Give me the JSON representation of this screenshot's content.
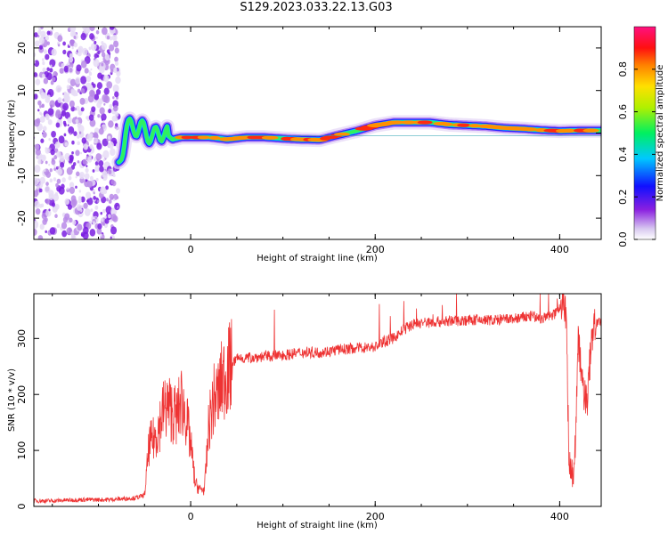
{
  "title": "S129.2023.033.22.13.G03",
  "chart_data": [
    {
      "type": "heatmap",
      "xlabel": "Height of straight line (km)",
      "ylabel": "Frequency (Hz)",
      "xlim": [
        -170,
        445
      ],
      "ylim": [
        -25,
        25
      ],
      "xticks": [
        0,
        200,
        400
      ],
      "yticks": [
        -20,
        -10,
        0,
        10,
        20
      ],
      "colorbar": {
        "label": "Normalized spectral amplitude",
        "range": [
          0,
          1
        ],
        "ticks": [
          0.0,
          0.2,
          0.4,
          0.6,
          0.8
        ]
      },
      "noise_region_x": [
        -170,
        -78
      ],
      "ridge": {
        "x": [
          -78,
          -70,
          -60,
          -50,
          -40,
          -30,
          -20,
          -10,
          0,
          20,
          40,
          60,
          80,
          100,
          120,
          140,
          160,
          180,
          200,
          220,
          240,
          260,
          280,
          300,
          320,
          340,
          360,
          380,
          400,
          420,
          445
        ],
        "frequency": [
          -8,
          1,
          1.5,
          0.5,
          -1,
          0.5,
          -1.5,
          -1,
          -1,
          -1,
          -1.5,
          -1,
          -1,
          -1.3,
          -1.5,
          -1.6,
          -0.5,
          0.5,
          1.8,
          2.5,
          2.5,
          2.5,
          2.0,
          1.8,
          1.6,
          1.2,
          1.0,
          0.7,
          0.5,
          0.6,
          0.6
        ]
      }
    },
    {
      "type": "line",
      "xlabel": "Height of straight line (km)",
      "ylabel": "SNR (10 * v/v)",
      "xlim": [
        -170,
        445
      ],
      "ylim": [
        0,
        380
      ],
      "xticks": [
        0,
        200,
        400
      ],
      "yticks": [
        0,
        100,
        200,
        300
      ],
      "series": [
        {
          "color": "#ee3333",
          "x": [
            -170,
            -150,
            -120,
            -90,
            -60,
            -50,
            -45,
            -40,
            -35,
            -30,
            -25,
            -20,
            -15,
            -10,
            -5,
            0,
            5,
            10,
            15,
            20,
            25,
            30,
            35,
            40,
            50,
            60,
            80,
            100,
            120,
            140,
            160,
            180,
            200,
            210,
            220,
            230,
            240,
            250,
            270,
            290,
            310,
            330,
            350,
            370,
            380,
            390,
            395,
            400,
            405,
            407,
            410,
            413,
            416,
            420,
            425,
            430,
            435,
            440,
            445
          ],
          "y": [
            10,
            10,
            12,
            12,
            15,
            20,
            110,
            120,
            140,
            170,
            180,
            170,
            160,
            190,
            160,
            110,
            40,
            30,
            30,
            150,
            190,
            200,
            230,
            240,
            265,
            265,
            268,
            270,
            275,
            275,
            280,
            283,
            285,
            295,
            300,
            315,
            325,
            328,
            330,
            332,
            333,
            333,
            335,
            340,
            335,
            340,
            345,
            360,
            370,
            340,
            90,
            65,
            60,
            300,
            210,
            190,
            310,
            330,
            325
          ]
        }
      ]
    }
  ]
}
